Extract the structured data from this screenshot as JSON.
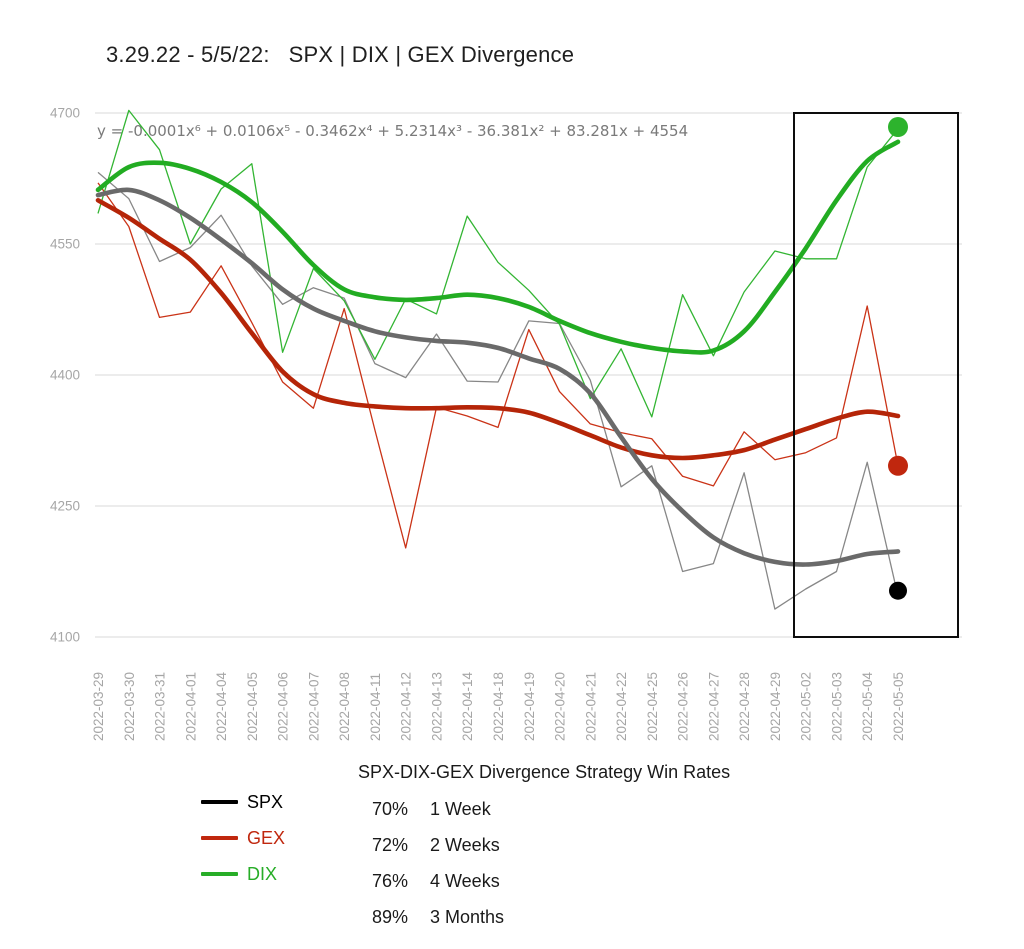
{
  "title": "3.29.22 - 5/5/22:   SPX | DIX | GEX Divergence",
  "chart_data": {
    "type": "line",
    "title": "3.29.22 - 5/5/22: SPX | DIX | GEX Divergence",
    "equation": "y = -0.0001x⁶ + 0.0106x⁵ - 0.3462x⁴ + 5.2314x³ - 36.381x² + 83.281x + 4554",
    "x_labels": [
      "2022-03-29",
      "2022-03-30",
      "2022-03-31",
      "2022-04-01",
      "2022-04-04",
      "2022-04-05",
      "2022-04-06",
      "2022-04-07",
      "2022-04-08",
      "2022-04-11",
      "2022-04-12",
      "2022-04-13",
      "2022-04-14",
      "2022-04-18",
      "2022-04-19",
      "2022-04-20",
      "2022-04-21",
      "2022-04-22",
      "2022-04-25",
      "2022-04-26",
      "2022-04-27",
      "2022-04-28",
      "2022-04-29",
      "2022-05-02",
      "2022-05-03",
      "2022-05-04",
      "2022-05-05"
    ],
    "ylim": [
      4100,
      4700
    ],
    "yticks": [
      4100,
      4250,
      4400,
      4550,
      4700
    ],
    "grid": true,
    "grid_color": "#d9d9d9",
    "tick_label_color": "#a6a6a6",
    "equation_color": "#7a7a7a",
    "series": [
      {
        "name": "SPX",
        "color": "#878787",
        "width": 1.3,
        "values": [
          4632,
          4602,
          4530,
          4546,
          4583,
          4525,
          4481,
          4500,
          4488,
          4413,
          4397,
          4447,
          4393,
          4392,
          4462,
          4459,
          4394,
          4272,
          4296,
          4175,
          4184,
          4288,
          4132,
          4155,
          4175,
          4300,
          4147
        ]
      },
      {
        "name": "GEX",
        "color": "#ca3317",
        "width": 1.3,
        "values": [
          4620,
          4570,
          4466,
          4472,
          4525,
          4460,
          4392,
          4362,
          4476,
          4337,
          4202,
          4363,
          4353,
          4340,
          4452,
          4381,
          4344,
          4334,
          4327,
          4284,
          4273,
          4335,
          4303,
          4311,
          4328,
          4479,
          4296
        ]
      },
      {
        "name": "DIX",
        "color": "#33b533",
        "width": 1.3,
        "values": [
          4585,
          4703,
          4658,
          4550,
          4613,
          4642,
          4426,
          4522,
          4485,
          4418,
          4487,
          4470,
          4582,
          4529,
          4497,
          4458,
          4373,
          4430,
          4352,
          4492,
          4422,
          4495,
          4542,
          4533,
          4533,
          4638,
          4682
        ]
      }
    ],
    "trend_series": [
      {
        "name": "GEX trend",
        "color": "#b52508",
        "width": 4.6,
        "values": [
          4600,
          4580,
          4556,
          4532,
          4494,
          4448,
          4404,
          4378,
          4368,
          4364,
          4362,
          4362,
          4363,
          4362,
          4357,
          4345,
          4331,
          4317,
          4308,
          4305,
          4308,
          4314,
          4326,
          4338,
          4350,
          4358,
          4353
        ]
      },
      {
        "name": "SPX trend",
        "color": "#6a6a6a",
        "width": 4.6,
        "values": [
          4606,
          4612,
          4600,
          4580,
          4555,
          4528,
          4498,
          4476,
          4462,
          4450,
          4443,
          4439,
          4437,
          4431,
          4419,
          4407,
          4379,
          4329,
          4281,
          4244,
          4214,
          4196,
          4186,
          4183,
          4187,
          4195,
          4198
        ]
      },
      {
        "name": "DIX trend",
        "color": "#22ac22",
        "width": 4.6,
        "values": [
          4612,
          4638,
          4643,
          4636,
          4621,
          4598,
          4564,
          4526,
          4498,
          4489,
          4486,
          4488,
          4492,
          4488,
          4478,
          4462,
          4448,
          4438,
          4431,
          4427,
          4428,
          4450,
          4495,
          4545,
          4600,
          4645,
          4667
        ]
      }
    ],
    "end_dots": [
      {
        "series": "DIX",
        "value": 4684,
        "color": "#2db32d",
        "radius": 10
      },
      {
        "series": "GEX",
        "value": 4296,
        "color": "#c0270e",
        "radius": 10
      },
      {
        "series": "SPX",
        "value": 4153,
        "color": "#000000",
        "radius": 9
      }
    ],
    "highlight_box": {
      "from_x_index": 22.62,
      "to_x_index": 27.95,
      "y_min": 4100,
      "y_max": 4700,
      "stroke": "#0d0d0d",
      "stroke_width": 2
    },
    "legend_position": "bottom-left"
  },
  "legend": {
    "items": [
      {
        "label": "SPX",
        "color": "#000000"
      },
      {
        "label": "GEX",
        "color": "#c0270e"
      },
      {
        "label": "DIX",
        "color": "#27ad27"
      }
    ]
  },
  "win_rates": {
    "title": "SPX-DIX-GEX Divergence Strategy Win Rates",
    "rows": [
      {
        "pct": "70%",
        "period": "1 Week"
      },
      {
        "pct": "72%",
        "period": "2 Weeks"
      },
      {
        "pct": "76%",
        "period": "4 Weeks"
      },
      {
        "pct": "89%",
        "period": "3 Months"
      }
    ]
  }
}
